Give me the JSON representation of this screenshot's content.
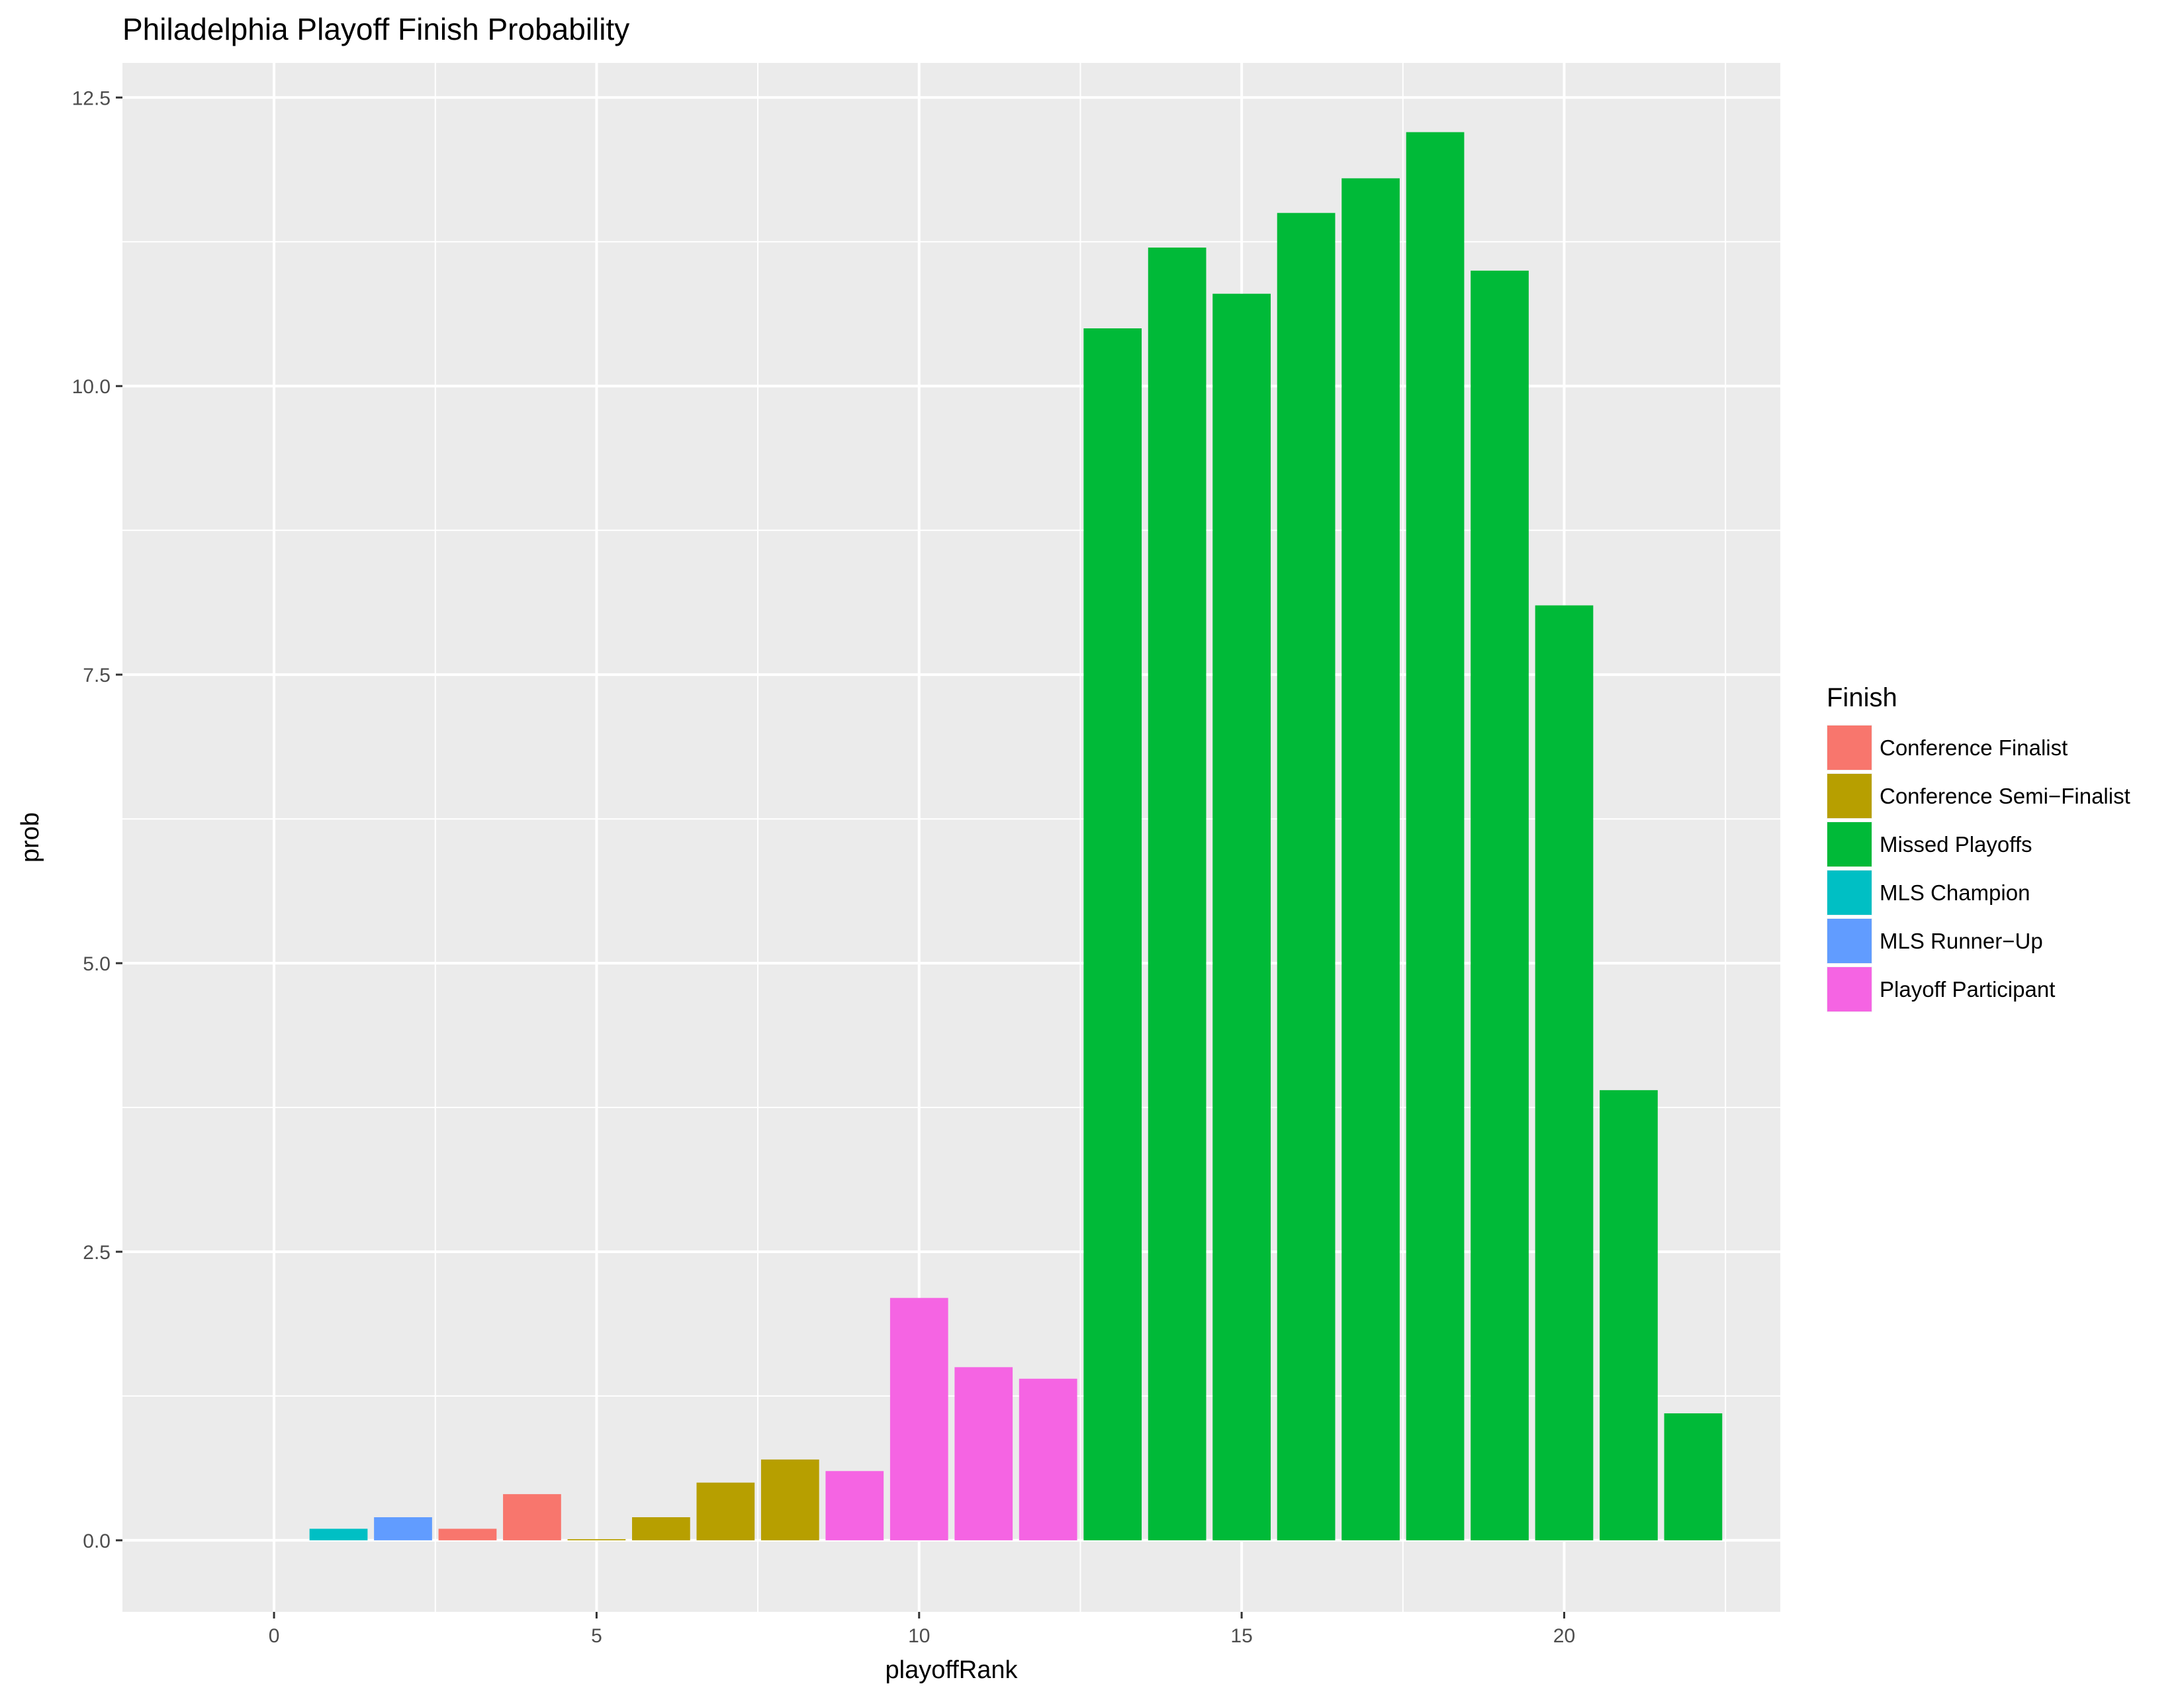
{
  "chart_data": {
    "type": "bar",
    "title": "Philadelphia Playoff Finish Probability",
    "xlabel": "playoffRank",
    "ylabel": "prob",
    "xlim": [
      -2.35,
      23.35
    ],
    "ylim": [
      -0.62,
      12.8
    ],
    "x_ticks": [
      0,
      5,
      10,
      15,
      20
    ],
    "x_tick_labels": [
      "0",
      "5",
      "10",
      "15",
      "20"
    ],
    "y_ticks": [
      0,
      2.5,
      5,
      7.5,
      10,
      12.5
    ],
    "y_tick_labels": [
      "0.0",
      "2.5",
      "5.0",
      "7.5",
      "10.0",
      "12.5"
    ],
    "grid": true,
    "background": "#EBEBEB",
    "legend": {
      "title": "Finish",
      "position": "right",
      "entries": [
        {
          "label": "Conference Finalist",
          "color": "#F8766D"
        },
        {
          "label": "Conference Semi−Finalist",
          "color": "#B79F00"
        },
        {
          "label": "Missed Playoffs",
          "color": "#00BA38"
        },
        {
          "label": "MLS Champion",
          "color": "#00BFC4"
        },
        {
          "label": "MLS Runner−Up",
          "color": "#619CFF"
        },
        {
          "label": "Playoff Participant",
          "color": "#F564E3"
        }
      ]
    },
    "bars": [
      {
        "x": 1,
        "value": 0.1,
        "finish": "MLS Champion"
      },
      {
        "x": 2,
        "value": 0.2,
        "finish": "MLS Runner−Up"
      },
      {
        "x": 3,
        "value": 0.1,
        "finish": "Conference Finalist"
      },
      {
        "x": 4,
        "value": 0.4,
        "finish": "Conference Finalist"
      },
      {
        "x": 5,
        "value": 0.01,
        "finish": "Conference Semi−Finalist"
      },
      {
        "x": 6,
        "value": 0.2,
        "finish": "Conference Semi−Finalist"
      },
      {
        "x": 7,
        "value": 0.5,
        "finish": "Conference Semi−Finalist"
      },
      {
        "x": 8,
        "value": 0.7,
        "finish": "Conference Semi−Finalist"
      },
      {
        "x": 9,
        "value": 0.6,
        "finish": "Playoff Participant"
      },
      {
        "x": 10,
        "value": 2.1,
        "finish": "Playoff Participant"
      },
      {
        "x": 11,
        "value": 1.5,
        "finish": "Playoff Participant"
      },
      {
        "x": 12,
        "value": 1.4,
        "finish": "Playoff Participant"
      },
      {
        "x": 13,
        "value": 10.5,
        "finish": "Missed Playoffs"
      },
      {
        "x": 14,
        "value": 11.2,
        "finish": "Missed Playoffs"
      },
      {
        "x": 15,
        "value": 10.8,
        "finish": "Missed Playoffs"
      },
      {
        "x": 16,
        "value": 11.5,
        "finish": "Missed Playoffs"
      },
      {
        "x": 17,
        "value": 11.8,
        "finish": "Missed Playoffs"
      },
      {
        "x": 18,
        "value": 12.2,
        "finish": "Missed Playoffs"
      },
      {
        "x": 19,
        "value": 11.0,
        "finish": "Missed Playoffs"
      },
      {
        "x": 20,
        "value": 8.1,
        "finish": "Missed Playoffs"
      },
      {
        "x": 21,
        "value": 3.9,
        "finish": "Missed Playoffs"
      },
      {
        "x": 22,
        "value": 1.1,
        "finish": "Missed Playoffs"
      }
    ],
    "bar_width": 0.9
  }
}
